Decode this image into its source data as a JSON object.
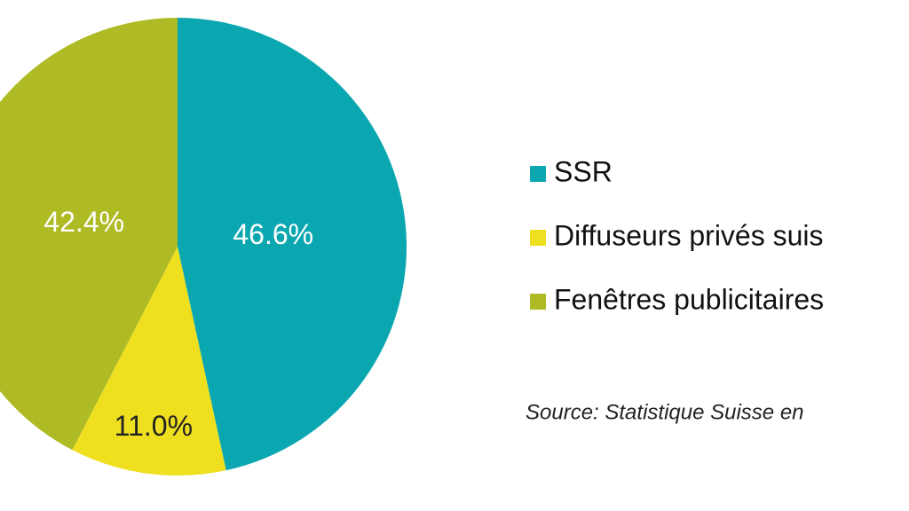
{
  "chart_data": {
    "type": "pie",
    "categories": [
      "SSR",
      "Diffuseurs privés suis",
      "Fenêtres publicitaires"
    ],
    "values": [
      46.6,
      11.0,
      42.4
    ],
    "value_labels": [
      "46.6%",
      "11.0%",
      "42.4%"
    ],
    "colors": [
      "#0aa7b0",
      "#eedf1f",
      "#aebb24"
    ],
    "source": "Source: Statistique Suisse en"
  }
}
